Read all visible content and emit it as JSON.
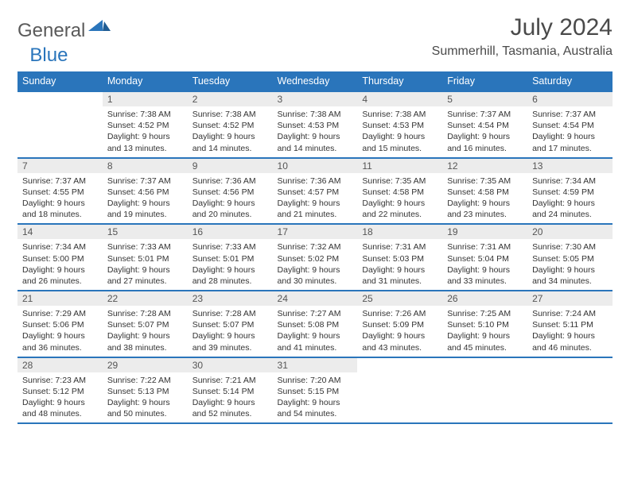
{
  "brand": {
    "part1": "General",
    "part2": "Blue"
  },
  "title": "July 2024",
  "location": "Summerhill, Tasmania, Australia",
  "colors": {
    "accent": "#2a75bb",
    "daynum_bg": "#ececec",
    "text": "#333333"
  },
  "weekdays": [
    "Sunday",
    "Monday",
    "Tuesday",
    "Wednesday",
    "Thursday",
    "Friday",
    "Saturday"
  ],
  "weeks": [
    [
      null,
      {
        "n": "1",
        "sr": "Sunrise: 7:38 AM",
        "ss": "Sunset: 4:52 PM",
        "d1": "Daylight: 9 hours",
        "d2": "and 13 minutes."
      },
      {
        "n": "2",
        "sr": "Sunrise: 7:38 AM",
        "ss": "Sunset: 4:52 PM",
        "d1": "Daylight: 9 hours",
        "d2": "and 14 minutes."
      },
      {
        "n": "3",
        "sr": "Sunrise: 7:38 AM",
        "ss": "Sunset: 4:53 PM",
        "d1": "Daylight: 9 hours",
        "d2": "and 14 minutes."
      },
      {
        "n": "4",
        "sr": "Sunrise: 7:38 AM",
        "ss": "Sunset: 4:53 PM",
        "d1": "Daylight: 9 hours",
        "d2": "and 15 minutes."
      },
      {
        "n": "5",
        "sr": "Sunrise: 7:37 AM",
        "ss": "Sunset: 4:54 PM",
        "d1": "Daylight: 9 hours",
        "d2": "and 16 minutes."
      },
      {
        "n": "6",
        "sr": "Sunrise: 7:37 AM",
        "ss": "Sunset: 4:54 PM",
        "d1": "Daylight: 9 hours",
        "d2": "and 17 minutes."
      }
    ],
    [
      {
        "n": "7",
        "sr": "Sunrise: 7:37 AM",
        "ss": "Sunset: 4:55 PM",
        "d1": "Daylight: 9 hours",
        "d2": "and 18 minutes."
      },
      {
        "n": "8",
        "sr": "Sunrise: 7:37 AM",
        "ss": "Sunset: 4:56 PM",
        "d1": "Daylight: 9 hours",
        "d2": "and 19 minutes."
      },
      {
        "n": "9",
        "sr": "Sunrise: 7:36 AM",
        "ss": "Sunset: 4:56 PM",
        "d1": "Daylight: 9 hours",
        "d2": "and 20 minutes."
      },
      {
        "n": "10",
        "sr": "Sunrise: 7:36 AM",
        "ss": "Sunset: 4:57 PM",
        "d1": "Daylight: 9 hours",
        "d2": "and 21 minutes."
      },
      {
        "n": "11",
        "sr": "Sunrise: 7:35 AM",
        "ss": "Sunset: 4:58 PM",
        "d1": "Daylight: 9 hours",
        "d2": "and 22 minutes."
      },
      {
        "n": "12",
        "sr": "Sunrise: 7:35 AM",
        "ss": "Sunset: 4:58 PM",
        "d1": "Daylight: 9 hours",
        "d2": "and 23 minutes."
      },
      {
        "n": "13",
        "sr": "Sunrise: 7:34 AM",
        "ss": "Sunset: 4:59 PM",
        "d1": "Daylight: 9 hours",
        "d2": "and 24 minutes."
      }
    ],
    [
      {
        "n": "14",
        "sr": "Sunrise: 7:34 AM",
        "ss": "Sunset: 5:00 PM",
        "d1": "Daylight: 9 hours",
        "d2": "and 26 minutes."
      },
      {
        "n": "15",
        "sr": "Sunrise: 7:33 AM",
        "ss": "Sunset: 5:01 PM",
        "d1": "Daylight: 9 hours",
        "d2": "and 27 minutes."
      },
      {
        "n": "16",
        "sr": "Sunrise: 7:33 AM",
        "ss": "Sunset: 5:01 PM",
        "d1": "Daylight: 9 hours",
        "d2": "and 28 minutes."
      },
      {
        "n": "17",
        "sr": "Sunrise: 7:32 AM",
        "ss": "Sunset: 5:02 PM",
        "d1": "Daylight: 9 hours",
        "d2": "and 30 minutes."
      },
      {
        "n": "18",
        "sr": "Sunrise: 7:31 AM",
        "ss": "Sunset: 5:03 PM",
        "d1": "Daylight: 9 hours",
        "d2": "and 31 minutes."
      },
      {
        "n": "19",
        "sr": "Sunrise: 7:31 AM",
        "ss": "Sunset: 5:04 PM",
        "d1": "Daylight: 9 hours",
        "d2": "and 33 minutes."
      },
      {
        "n": "20",
        "sr": "Sunrise: 7:30 AM",
        "ss": "Sunset: 5:05 PM",
        "d1": "Daylight: 9 hours",
        "d2": "and 34 minutes."
      }
    ],
    [
      {
        "n": "21",
        "sr": "Sunrise: 7:29 AM",
        "ss": "Sunset: 5:06 PM",
        "d1": "Daylight: 9 hours",
        "d2": "and 36 minutes."
      },
      {
        "n": "22",
        "sr": "Sunrise: 7:28 AM",
        "ss": "Sunset: 5:07 PM",
        "d1": "Daylight: 9 hours",
        "d2": "and 38 minutes."
      },
      {
        "n": "23",
        "sr": "Sunrise: 7:28 AM",
        "ss": "Sunset: 5:07 PM",
        "d1": "Daylight: 9 hours",
        "d2": "and 39 minutes."
      },
      {
        "n": "24",
        "sr": "Sunrise: 7:27 AM",
        "ss": "Sunset: 5:08 PM",
        "d1": "Daylight: 9 hours",
        "d2": "and 41 minutes."
      },
      {
        "n": "25",
        "sr": "Sunrise: 7:26 AM",
        "ss": "Sunset: 5:09 PM",
        "d1": "Daylight: 9 hours",
        "d2": "and 43 minutes."
      },
      {
        "n": "26",
        "sr": "Sunrise: 7:25 AM",
        "ss": "Sunset: 5:10 PM",
        "d1": "Daylight: 9 hours",
        "d2": "and 45 minutes."
      },
      {
        "n": "27",
        "sr": "Sunrise: 7:24 AM",
        "ss": "Sunset: 5:11 PM",
        "d1": "Daylight: 9 hours",
        "d2": "and 46 minutes."
      }
    ],
    [
      {
        "n": "28",
        "sr": "Sunrise: 7:23 AM",
        "ss": "Sunset: 5:12 PM",
        "d1": "Daylight: 9 hours",
        "d2": "and 48 minutes."
      },
      {
        "n": "29",
        "sr": "Sunrise: 7:22 AM",
        "ss": "Sunset: 5:13 PM",
        "d1": "Daylight: 9 hours",
        "d2": "and 50 minutes."
      },
      {
        "n": "30",
        "sr": "Sunrise: 7:21 AM",
        "ss": "Sunset: 5:14 PM",
        "d1": "Daylight: 9 hours",
        "d2": "and 52 minutes."
      },
      {
        "n": "31",
        "sr": "Sunrise: 7:20 AM",
        "ss": "Sunset: 5:15 PM",
        "d1": "Daylight: 9 hours",
        "d2": "and 54 minutes."
      },
      null,
      null,
      null
    ]
  ]
}
